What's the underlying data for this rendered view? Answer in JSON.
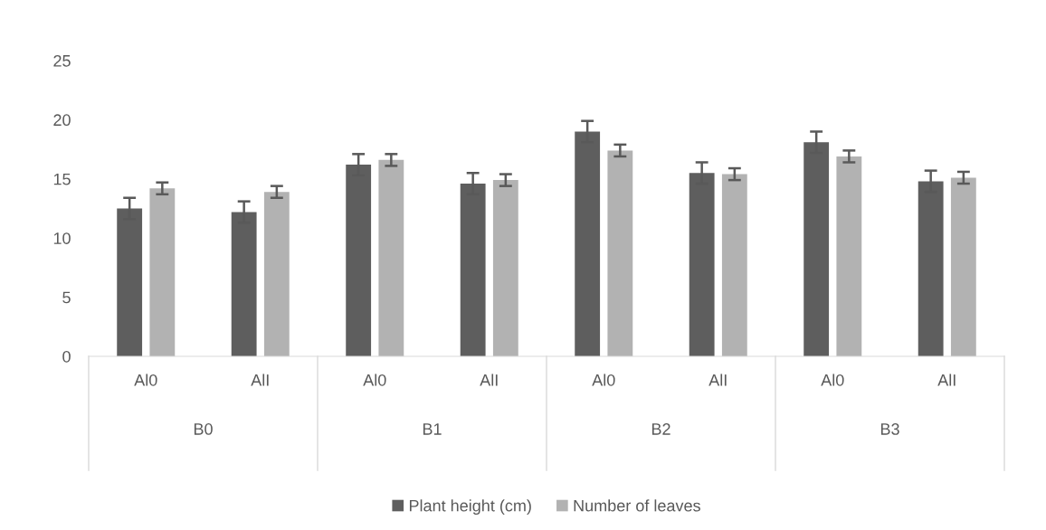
{
  "chart_data": {
    "type": "bar",
    "categories": [
      "Al0",
      "AlI",
      "Al0",
      "AlI",
      "Al0",
      "AlI",
      "Al0",
      "AlI"
    ],
    "annotations": [
      "B0",
      "B1",
      "B2",
      "B3"
    ],
    "series": [
      {
        "name": "Plant height (cm)",
        "color": "#5e5e5e",
        "values": [
          12.5,
          12.2,
          16.2,
          14.6,
          19.0,
          15.5,
          18.1,
          14.8
        ],
        "errors": [
          0.9,
          0.9,
          0.9,
          0.9,
          0.9,
          0.9,
          0.9,
          0.9
        ]
      },
      {
        "name": "Number of leaves",
        "color": "#b2b2b2",
        "values": [
          14.2,
          13.9,
          16.6,
          14.9,
          17.4,
          15.4,
          16.9,
          15.1
        ],
        "errors": [
          0.5,
          0.5,
          0.5,
          0.5,
          0.5,
          0.5,
          0.5,
          0.5
        ]
      }
    ],
    "ylim": [
      0,
      25
    ],
    "yticks": [
      0,
      5,
      10,
      15,
      20,
      25
    ],
    "grid": false,
    "legend": "bottom"
  }
}
